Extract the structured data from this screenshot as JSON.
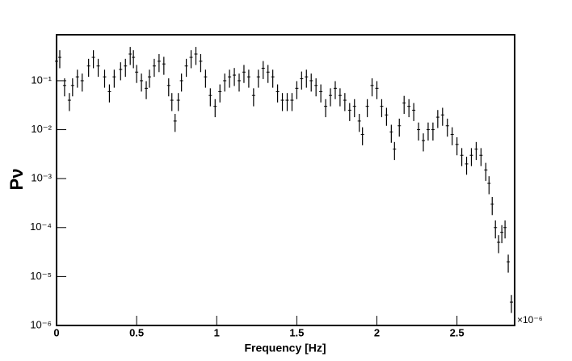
{
  "chart_data": {
    "type": "errorbar",
    "xlabel": "Frequency [Hz]",
    "ylabel": "Pν",
    "x_multiplier": "×10⁻⁶",
    "log_y": true,
    "color": "#000000",
    "xlim": [
      0,
      2.86
    ],
    "xticks": [
      0,
      0.5,
      1,
      1.5,
      2,
      2.5
    ],
    "ylim": [
      1e-06,
      0.87
    ],
    "yticks": [
      {
        "value": 1e-06,
        "label": "10⁻⁶"
      },
      {
        "value": 1e-05,
        "label": "10⁻⁵"
      },
      {
        "value": 0.0001,
        "label": "10⁻⁴"
      },
      {
        "value": 0.001,
        "label": "10⁻³"
      },
      {
        "value": 0.01,
        "label": "10⁻²"
      },
      {
        "value": 0.1,
        "label": "10⁻¹"
      }
    ],
    "x": [
      0,
      0.02,
      0.05,
      0.08,
      0.1,
      0.13,
      0.16,
      0.2,
      0.23,
      0.26,
      0.3,
      0.33,
      0.36,
      0.4,
      0.43,
      0.46,
      0.48,
      0.5,
      0.53,
      0.56,
      0.58,
      0.61,
      0.64,
      0.67,
      0.7,
      0.72,
      0.74,
      0.76,
      0.78,
      0.81,
      0.84,
      0.87,
      0.9,
      0.93,
      0.96,
      0.99,
      1.02,
      1.05,
      1.08,
      1.11,
      1.14,
      1.17,
      1.2,
      1.23,
      1.26,
      1.29,
      1.32,
      1.35,
      1.38,
      1.41,
      1.44,
      1.47,
      1.5,
      1.53,
      1.56,
      1.59,
      1.62,
      1.65,
      1.68,
      1.71,
      1.74,
      1.77,
      1.8,
      1.83,
      1.86,
      1.89,
      1.91,
      1.94,
      1.97,
      2.0,
      2.03,
      2.06,
      2.09,
      2.11,
      2.14,
      2.17,
      2.2,
      2.23,
      2.26,
      2.29,
      2.32,
      2.35,
      2.38,
      2.41,
      2.44,
      2.47,
      2.5,
      2.53,
      2.56,
      2.59,
      2.62,
      2.65,
      2.68,
      2.7,
      2.72,
      2.74,
      2.76,
      2.78,
      2.8,
      2.82,
      2.84
    ],
    "values": [
      0.25,
      0.3,
      0.08,
      0.04,
      0.08,
      0.12,
      0.1,
      0.2,
      0.3,
      0.2,
      0.12,
      0.06,
      0.12,
      0.17,
      0.2,
      0.35,
      0.3,
      0.15,
      0.1,
      0.07,
      0.12,
      0.2,
      0.25,
      0.22,
      0.08,
      0.04,
      0.015,
      0.04,
      0.1,
      0.2,
      0.3,
      0.35,
      0.25,
      0.12,
      0.05,
      0.03,
      0.06,
      0.1,
      0.12,
      0.13,
      0.1,
      0.15,
      0.12,
      0.05,
      0.12,
      0.18,
      0.15,
      0.12,
      0.06,
      0.04,
      0.04,
      0.04,
      0.07,
      0.11,
      0.12,
      0.1,
      0.08,
      0.06,
      0.03,
      0.05,
      0.07,
      0.05,
      0.04,
      0.025,
      0.03,
      0.015,
      0.008,
      0.03,
      0.08,
      0.07,
      0.03,
      0.02,
      0.009,
      0.004,
      0.012,
      0.035,
      0.03,
      0.025,
      0.01,
      0.006,
      0.01,
      0.01,
      0.018,
      0.02,
      0.012,
      0.008,
      0.005,
      0.003,
      0.002,
      0.003,
      0.004,
      0.003,
      0.0015,
      0.0008,
      0.0003,
      0.0001,
      5e-05,
      8e-05,
      0.0001,
      2e-05,
      3e-06
    ],
    "yerr": [
      0.1,
      0.12,
      0.032,
      0.016,
      0.032,
      0.048,
      0.04,
      0.08,
      0.12,
      0.08,
      0.048,
      0.024,
      0.048,
      0.068,
      0.08,
      0.14,
      0.12,
      0.06,
      0.04,
      0.028,
      0.048,
      0.08,
      0.1,
      0.088,
      0.032,
      0.016,
      0.006,
      0.016,
      0.04,
      0.08,
      0.12,
      0.14,
      0.1,
      0.048,
      0.02,
      0.012,
      0.024,
      0.04,
      0.048,
      0.052,
      0.04,
      0.06,
      0.048,
      0.02,
      0.048,
      0.072,
      0.06,
      0.048,
      0.024,
      0.016,
      0.016,
      0.016,
      0.028,
      0.044,
      0.048,
      0.04,
      0.032,
      0.024,
      0.012,
      0.02,
      0.028,
      0.02,
      0.016,
      0.01,
      0.012,
      0.006,
      0.0032,
      0.012,
      0.032,
      0.028,
      0.012,
      0.008,
      0.0036,
      0.0016,
      0.0048,
      0.014,
      0.012,
      0.01,
      0.004,
      0.0024,
      0.004,
      0.004,
      0.0072,
      0.008,
      0.0048,
      0.0032,
      0.002,
      0.0012,
      0.0008,
      0.0012,
      0.0016,
      0.0012,
      0.0006,
      0.00032,
      0.00012,
      4e-05,
      2e-05,
      3.2e-05,
      4e-05,
      8e-06,
      1.2e-06
    ]
  }
}
